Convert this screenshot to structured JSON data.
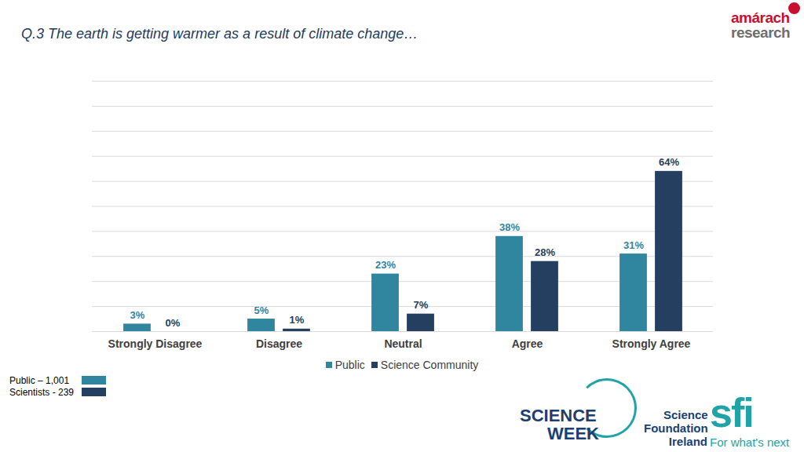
{
  "chart_data": {
    "type": "bar",
    "title": "Q.3 The earth is getting warmer as a result of climate change…",
    "categories": [
      "Strongly Disagree",
      "Disagree",
      "Neutral",
      "Agree",
      "Strongly Agree"
    ],
    "series": [
      {
        "name": "Public",
        "color": "#31869f",
        "values": [
          3,
          5,
          23,
          38,
          31
        ],
        "value_labels": [
          "3%",
          "5%",
          "23%",
          "38%",
          "31%"
        ]
      },
      {
        "name": "Science Community",
        "color": "#243f60",
        "values": [
          0,
          1,
          7,
          28,
          64
        ],
        "value_labels": [
          "0%",
          "1%",
          "7%",
          "28%",
          "64%"
        ]
      }
    ],
    "ylim": [
      0,
      100
    ],
    "yticks": [
      0,
      10,
      20,
      30,
      40,
      50,
      60,
      70,
      80,
      90,
      100
    ],
    "grid": true,
    "data_labels": true,
    "tick_labels": "x",
    "legend": "bottom",
    "annotations": [
      "Public – 1,001",
      "Scientists - 239"
    ],
    "logos": {
      "amarach": [
        "amárach",
        "research"
      ],
      "science_week": [
        "SCIENCE",
        "WEEK"
      ],
      "sfi": [
        "Science",
        "Foundation",
        "Ireland",
        "sfi",
        "For what's next"
      ]
    }
  }
}
